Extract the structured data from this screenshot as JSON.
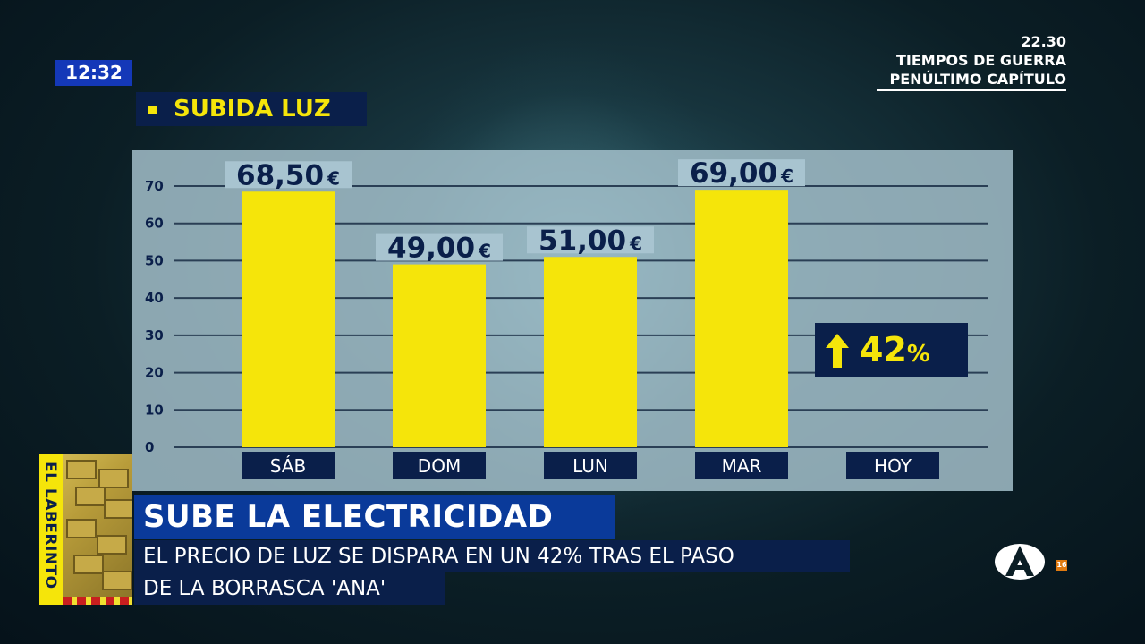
{
  "screen": {
    "clock": "12:32",
    "promo": {
      "time": "22.30",
      "line1": "TIEMPOS DE GUERRA",
      "line2": "PENÚLTIMO CAPÍTULO"
    },
    "section_title": "SUBIDA LUZ",
    "increase_badge": {
      "value": "42",
      "unit": "%"
    },
    "program_logo": {
      "text": "EL LABERINTO"
    },
    "headline": "SUBE LA ELECTRICIDAD",
    "subtitle_line1": "EL PRECIO DE LUZ SE DISPARA EN UN 42% TRAS EL PASO",
    "subtitle_line2": "DE LA BORRASCA 'ANA'",
    "channel": {
      "icon": "antena3-logo-icon",
      "age_rating": "16"
    }
  },
  "colors": {
    "bar": "#f5e50a",
    "navy": "#0a1f4a",
    "headline_bg": "#0a3a9a",
    "accent_yellow": "#f5e50a"
  },
  "chart_data": {
    "type": "bar",
    "categories": [
      "SÁB",
      "DOM",
      "LUN",
      "MAR",
      "HOY"
    ],
    "values": [
      68.5,
      49.0,
      51.0,
      69.0,
      null
    ],
    "data_labels": [
      "68,50",
      "49,00",
      "51,00",
      "69,00",
      ""
    ],
    "label_unit": "€",
    "ylim": [
      0,
      70
    ],
    "yticks": [
      0,
      10,
      20,
      30,
      40,
      50,
      60,
      70
    ],
    "grid": true,
    "xlabel": "",
    "ylabel": ""
  }
}
